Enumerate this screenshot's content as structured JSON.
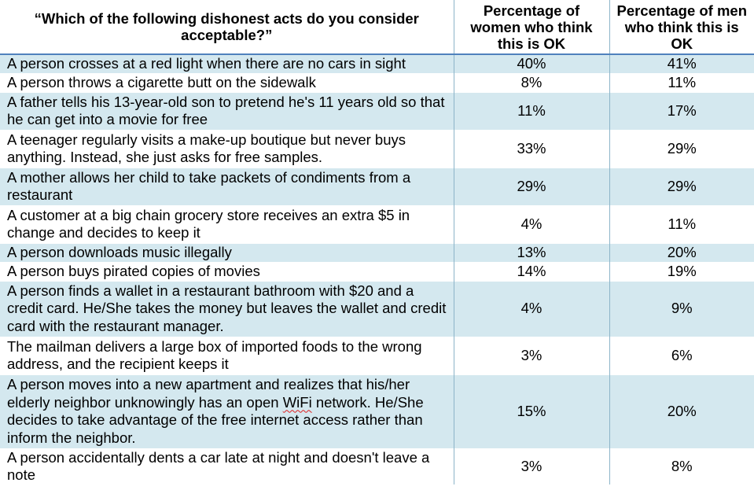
{
  "header": {
    "question": "“Which of the following dishonest acts do you consider acceptable?”",
    "women": "Percentage of women who think this is OK",
    "men": "Percentage of men who think this is OK"
  },
  "rows": [
    {
      "act": "A person crosses at a red light when there are no cars in sight",
      "women": "40%",
      "men": "41%"
    },
    {
      "act": "A person throws a cigarette butt on the sidewalk",
      "women": "8%",
      "men": "11%"
    },
    {
      "act": "A father tells his 13-year-old son to pretend he's 11 years old so that he can get into a movie for free",
      "women": "11%",
      "men": "17%"
    },
    {
      "act": "A teenager regularly visits a make-up boutique but never buys anything. Instead, she just asks for free samples.",
      "women": "33%",
      "men": "29%"
    },
    {
      "act": "A mother allows her child to take packets of condiments from a restaurant",
      "women": "29%",
      "men": "29%"
    },
    {
      "act": "A customer at a big chain grocery store receives an extra $5 in change and decides to keep it",
      "women": "4%",
      "men": "11%"
    },
    {
      "act": "A person downloads music illegally",
      "women": "13%",
      "men": "20%"
    },
    {
      "act": "A person buys pirated copies of movies",
      "women": "14%",
      "men": "19%"
    },
    {
      "act": "A person finds a wallet in a restaurant bathroom with $20 and a credit card. He/She takes the money but leaves the wallet and credit card with the restaurant manager.",
      "women": "4%",
      "men": "9%"
    },
    {
      "act": "The mailman delivers a large box of imported foods to the wrong address, and the recipient keeps it",
      "women": "3%",
      "men": "6%"
    },
    {
      "act_before": "A person moves into a new apartment and realizes that his/her elderly neighbor unknowingly has an open ",
      "act_flagged": "WiFi",
      "act_after": " network. He/She decides to take advantage of the free internet access rather than inform the neighbor.",
      "women": "15%",
      "men": "20%"
    },
    {
      "act": "A person accidentally dents a car late at night and doesn't leave a note",
      "women": "3%",
      "men": "8%"
    }
  ],
  "colors": {
    "row_shade": "#d4e8ef",
    "row_plain": "#ffffff",
    "header_rule": "#4f81bd",
    "column_rule": "#8cb4c9",
    "spellcheck_underline": "#e02020"
  }
}
